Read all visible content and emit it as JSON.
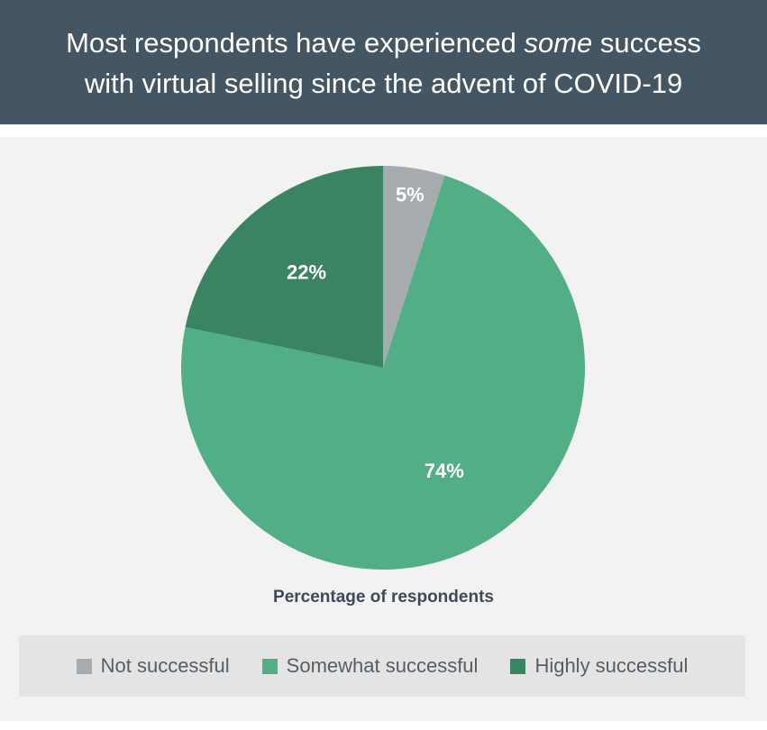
{
  "header": {
    "title_line1_pre": "Most respondents have experienced ",
    "title_line1_em": "some",
    "title_line1_post": " success",
    "title_line2": "with virtual selling since the advent of COVID-19"
  },
  "colors": {
    "header_bg": "#445563",
    "not_successful": "#a6abb0",
    "somewhat_successful": "#52ae84",
    "highly_successful": "#3b8462"
  },
  "chart_data": {
    "type": "pie",
    "title": "Most respondents have experienced some success with virtual selling since the advent of COVID-19",
    "xlabel": "Percentage of respondents",
    "legend_position": "bottom",
    "categories": [
      "Not successful",
      "Somewhat successful",
      "Highly successful"
    ],
    "values": [
      5,
      74,
      22
    ],
    "labels": [
      "5%",
      "74%",
      "22%"
    ],
    "colors": [
      "#a6abb0",
      "#52ae84",
      "#3b8462"
    ]
  }
}
